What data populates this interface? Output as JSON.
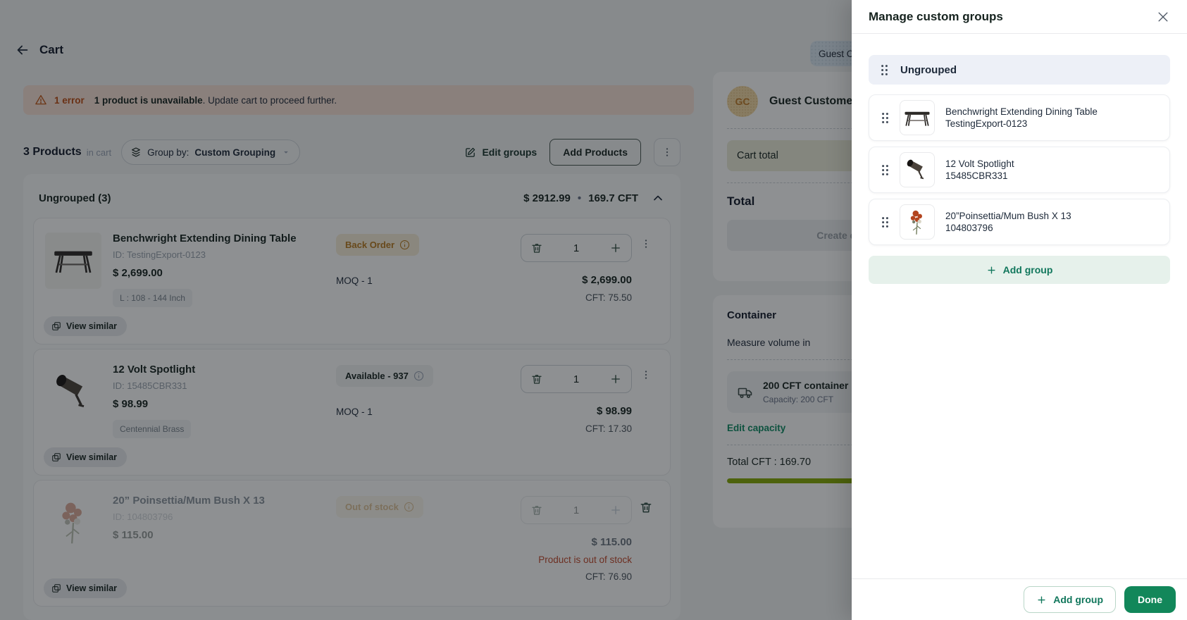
{
  "colors": {
    "accent": "#12875a",
    "progress": "#84a802",
    "alert_bg": "#f8e1d6"
  },
  "header": {
    "title": "Cart",
    "customer_chip": "Guest Customer"
  },
  "alert": {
    "error_count": "1 error",
    "bold": "1 product is unavailable",
    "rest": ". Update cart to proceed further."
  },
  "toolbar": {
    "count": "3 Products",
    "count_suffix": "in cart",
    "group_by_prefix": "Group by:",
    "group_by_value": "Custom Grouping",
    "edit_groups": "Edit groups",
    "add_products": "Add Products"
  },
  "group": {
    "title": "Ungrouped (3)",
    "total_price": "$ 2912.99",
    "separator": "•",
    "total_cft": "169.7 CFT"
  },
  "cart": {
    "rows": [
      {
        "name": "Benchwright Extending Dining Table",
        "id": "ID: TestingExport-0123",
        "price": "$ 2,699.00",
        "tag": "L : 108 - 144 Inch",
        "status": "Back Order",
        "moq": "MOQ - 1",
        "qty": "1",
        "total": "$ 2,699.00",
        "cft": "CFT: 75.50",
        "view_similar": "View similar"
      },
      {
        "name": "12 Volt Spotlight",
        "id": "ID: 15485CBR331",
        "price": "$ 98.99",
        "tag": "Centennial Brass",
        "status": "Available - 937",
        "moq": "MOQ - 1",
        "qty": "1",
        "total": "$ 98.99",
        "cft": "CFT: 17.30",
        "view_similar": "View similar"
      },
      {
        "name": "20” Poinsettia/Mum Bush X 13",
        "id": "ID: 104803796",
        "price": "$ 115.00",
        "status": "Out of stock",
        "qty": "1",
        "total": "$ 115.00",
        "error": "Product is out of stock",
        "cft": "CFT: 76.90",
        "view_similar": "View similar"
      }
    ]
  },
  "summary": {
    "initials": "GC",
    "customer_name": "Guest Customer",
    "cart_total": "Cart total",
    "total_label": "Total",
    "create_quote": "Create quote"
  },
  "container": {
    "title": "Container",
    "measure_label": "Measure volume in",
    "option_title": "200 CFT container",
    "option_capacity": "Capacity: 200 CFT",
    "edit_capacity": "Edit capacity",
    "total_cft": "Total CFT : 169.70",
    "progress_pct": 85
  },
  "drawer": {
    "title": "Manage custom groups",
    "ungrouped": "Ungrouped",
    "items": [
      {
        "name": "Benchwright Extending Dining Table",
        "id": "TestingExport-0123"
      },
      {
        "name": "12 Volt Spotlight",
        "id": "15485CBR331"
      },
      {
        "name": "20”Poinsettia/Mum Bush X 13",
        "id": "104803796"
      }
    ],
    "add_group": "Add group",
    "footer_add_group": "Add group",
    "done": "Done"
  }
}
